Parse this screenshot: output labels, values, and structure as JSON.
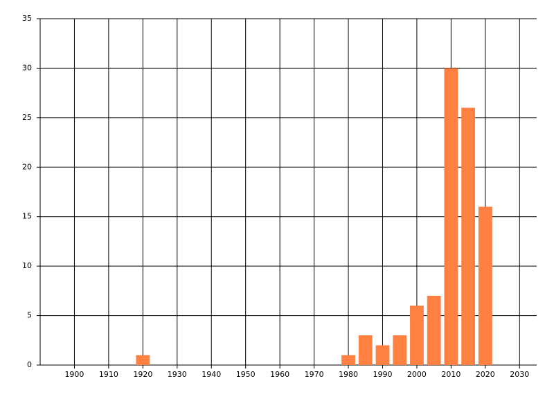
{
  "chart_data": {
    "type": "bar",
    "x": [
      1920,
      1980,
      1985,
      1990,
      1995,
      2000,
      2005,
      2010,
      2015,
      2020
    ],
    "values": [
      1,
      1,
      3,
      2,
      3,
      6,
      7,
      30,
      26,
      16
    ],
    "color": "#ff8040",
    "xlim": [
      1890,
      2035
    ],
    "xticks": [
      1900,
      1910,
      1920,
      1930,
      1940,
      1950,
      1960,
      1970,
      1980,
      1990,
      2000,
      2010,
      2020,
      2030
    ],
    "ylim": [
      0,
      35
    ],
    "yticks": [
      0,
      5,
      10,
      15,
      20,
      25,
      30,
      35
    ],
    "grid": true
  }
}
